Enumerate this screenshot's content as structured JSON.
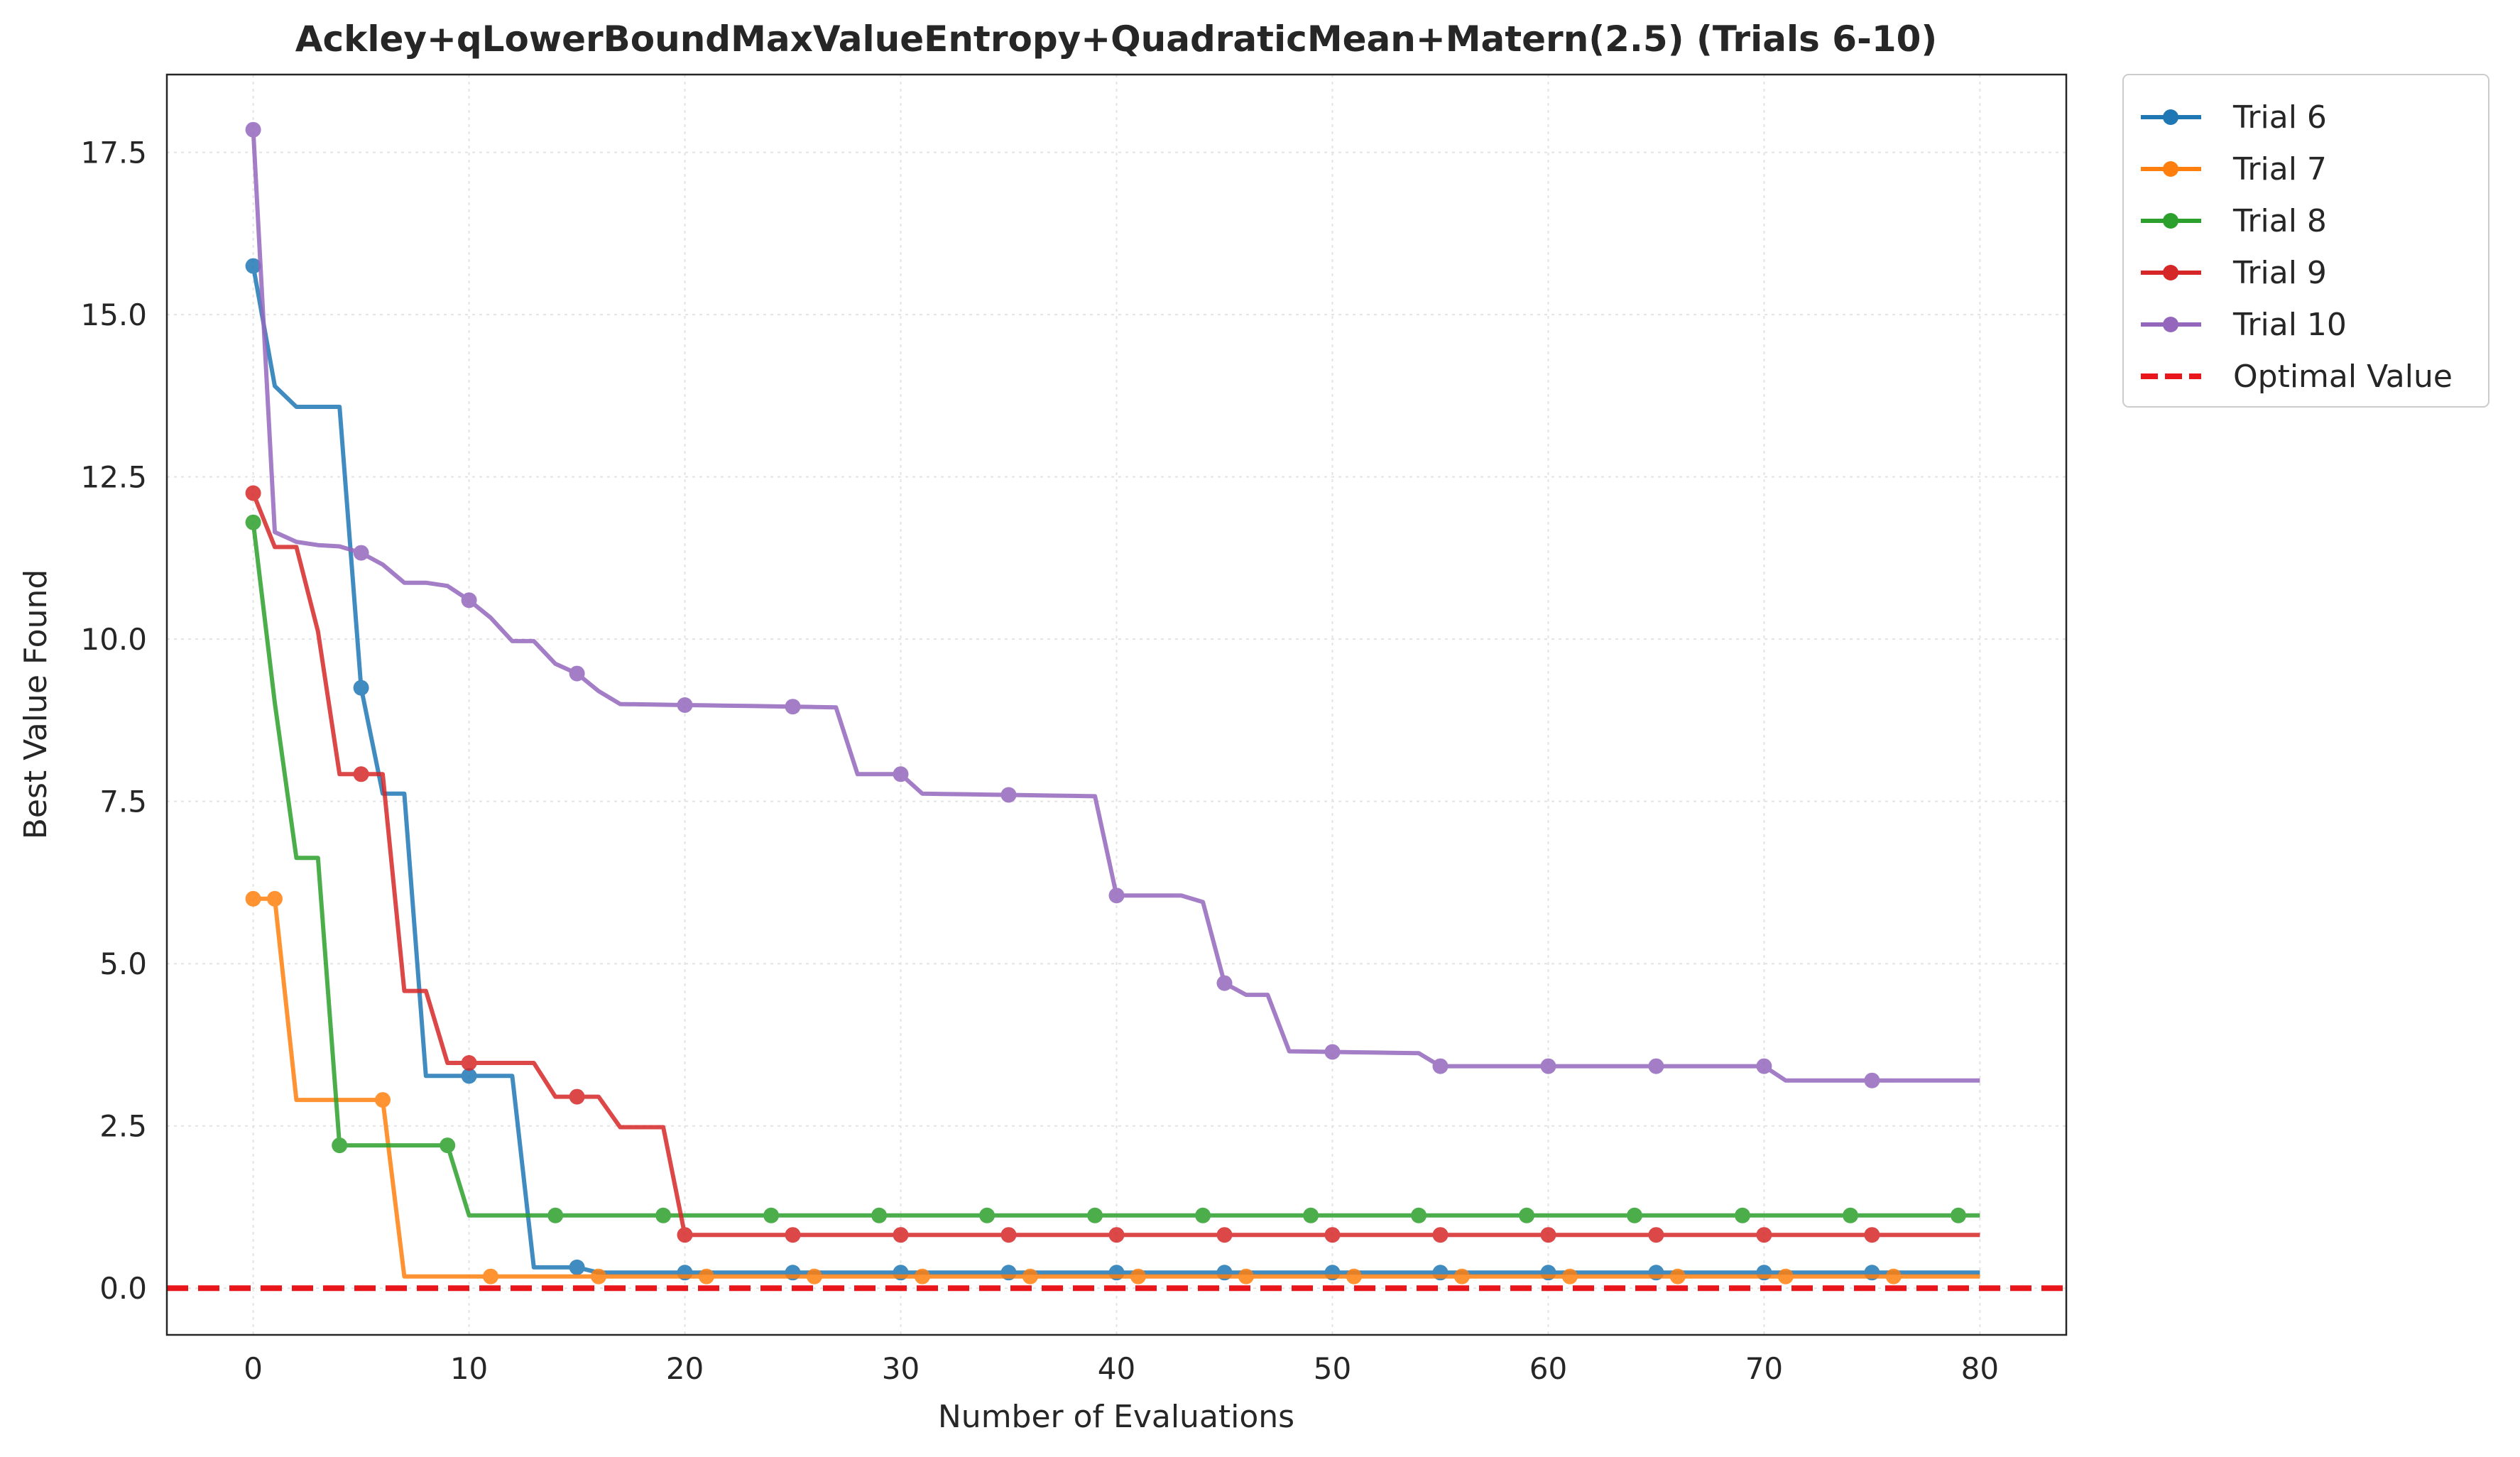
{
  "chart_data": {
    "type": "line",
    "title": "Ackley+qLowerBoundMaxValueEntropy+QuadraticMean+Matern(2.5) (Trials 6-10)",
    "xlabel": "Number of Evaluations",
    "ylabel": "Best Value Found",
    "xlim": [
      -4,
      84
    ],
    "ylim": [
      -0.72,
      18.7
    ],
    "xticks": [
      0,
      10,
      20,
      30,
      40,
      50,
      60,
      70,
      80
    ],
    "yticks": [
      0.0,
      2.5,
      5.0,
      7.5,
      10.0,
      12.5,
      15.0,
      17.5
    ],
    "xtick_labels": [
      "0",
      "10",
      "20",
      "30",
      "40",
      "50",
      "60",
      "70",
      "80"
    ],
    "ytick_labels": [
      "0.0",
      "2.5",
      "5.0",
      "7.5",
      "10.0",
      "12.5",
      "15.0",
      "17.5"
    ],
    "grid": true,
    "legend_position": "outside-top-right",
    "marker_every": 5,
    "series": [
      {
        "name": "Trial 6",
        "color": "#1f77b4",
        "marker_offset": 0,
        "points": [
          [
            0,
            15.75
          ],
          [
            1,
            13.9
          ],
          [
            2,
            13.58
          ],
          [
            4,
            13.58
          ],
          [
            5,
            9.25
          ],
          [
            6,
            7.62
          ],
          [
            7,
            7.62
          ],
          [
            8,
            3.27
          ],
          [
            12,
            3.27
          ],
          [
            13,
            0.32
          ],
          [
            15,
            0.32
          ],
          [
            16,
            0.24
          ],
          [
            80,
            0.24
          ]
        ]
      },
      {
        "name": "Trial 7",
        "color": "#ff7f0e",
        "marker_offset": 1,
        "points": [
          [
            0,
            6.0
          ],
          [
            1,
            6.0
          ],
          [
            2,
            2.9
          ],
          [
            6,
            2.9
          ],
          [
            7,
            0.18
          ],
          [
            80,
            0.18
          ]
        ]
      },
      {
        "name": "Trial 8",
        "color": "#2ca02c",
        "marker_offset": 4,
        "points": [
          [
            0,
            11.8
          ],
          [
            1,
            9.02
          ],
          [
            2,
            6.63
          ],
          [
            3,
            6.63
          ],
          [
            4,
            2.2
          ],
          [
            9,
            2.2
          ],
          [
            10,
            1.12
          ],
          [
            80,
            1.12
          ]
        ]
      },
      {
        "name": "Trial 9",
        "color": "#d62728",
        "marker_offset": 0,
        "points": [
          [
            0,
            12.25
          ],
          [
            1,
            11.42
          ],
          [
            2,
            11.42
          ],
          [
            3,
            10.12
          ],
          [
            4,
            7.92
          ],
          [
            6,
            7.92
          ],
          [
            7,
            4.58
          ],
          [
            8,
            4.58
          ],
          [
            9,
            3.47
          ],
          [
            13,
            3.47
          ],
          [
            14,
            2.95
          ],
          [
            16,
            2.95
          ],
          [
            17,
            2.48
          ],
          [
            19,
            2.48
          ],
          [
            20,
            0.82
          ],
          [
            80,
            0.82
          ]
        ]
      },
      {
        "name": "Trial 10",
        "color": "#9467bd",
        "marker_offset": 0,
        "points": [
          [
            0,
            17.85
          ],
          [
            1,
            11.65
          ],
          [
            2,
            11.5
          ],
          [
            3,
            11.45
          ],
          [
            4,
            11.43
          ],
          [
            5,
            11.33
          ],
          [
            6,
            11.15
          ],
          [
            7,
            10.87
          ],
          [
            8,
            10.87
          ],
          [
            9,
            10.82
          ],
          [
            10,
            10.6
          ],
          [
            11,
            10.33
          ],
          [
            12,
            9.97
          ],
          [
            13,
            9.97
          ],
          [
            14,
            9.62
          ],
          [
            15,
            9.47
          ],
          [
            16,
            9.2
          ],
          [
            17,
            9.0
          ],
          [
            27,
            8.95
          ],
          [
            28,
            7.92
          ],
          [
            30,
            7.92
          ],
          [
            31,
            7.62
          ],
          [
            39,
            7.58
          ],
          [
            40,
            6.05
          ],
          [
            43,
            6.05
          ],
          [
            44,
            5.95
          ],
          [
            45,
            4.7
          ],
          [
            46,
            4.52
          ],
          [
            47,
            4.52
          ],
          [
            48,
            3.65
          ],
          [
            54,
            3.62
          ],
          [
            55,
            3.42
          ],
          [
            70,
            3.42
          ],
          [
            71,
            3.2
          ],
          [
            80,
            3.2
          ]
        ]
      }
    ],
    "reference_line": {
      "name": "Optimal Value",
      "value": 0.0,
      "color": "#e8161b"
    }
  }
}
